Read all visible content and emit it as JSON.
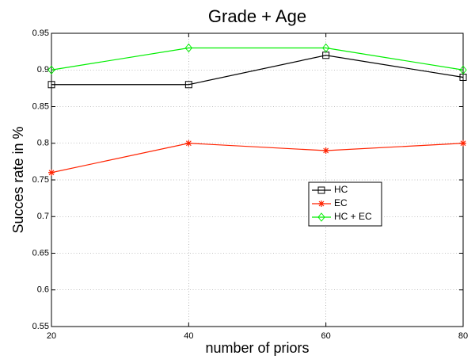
{
  "chart_data": {
    "type": "line",
    "title": "Grade + Age",
    "x_label": "number of priors",
    "y_label": "Succes rate in %",
    "x": [
      20,
      40,
      60,
      80
    ],
    "series": [
      {
        "name": "HC",
        "color": "#000000",
        "marker": "square",
        "values": [
          0.88,
          0.88,
          0.92,
          0.89
        ]
      },
      {
        "name": "EC",
        "color": "#ff2200",
        "marker": "asterisk",
        "values": [
          0.76,
          0.8,
          0.79,
          0.8
        ]
      },
      {
        "name": "HC + EC",
        "color": "#00ee00",
        "marker": "diamond",
        "values": [
          0.9,
          0.93,
          0.93,
          0.9
        ]
      }
    ],
    "xlim": [
      20,
      80
    ],
    "xticks": [
      20,
      40,
      60,
      80
    ],
    "ylim": [
      0.55,
      0.95
    ],
    "yticks": [
      0.55,
      0.6,
      0.65,
      0.7,
      0.75,
      0.8,
      0.85,
      0.9,
      0.95
    ],
    "grid": true
  }
}
